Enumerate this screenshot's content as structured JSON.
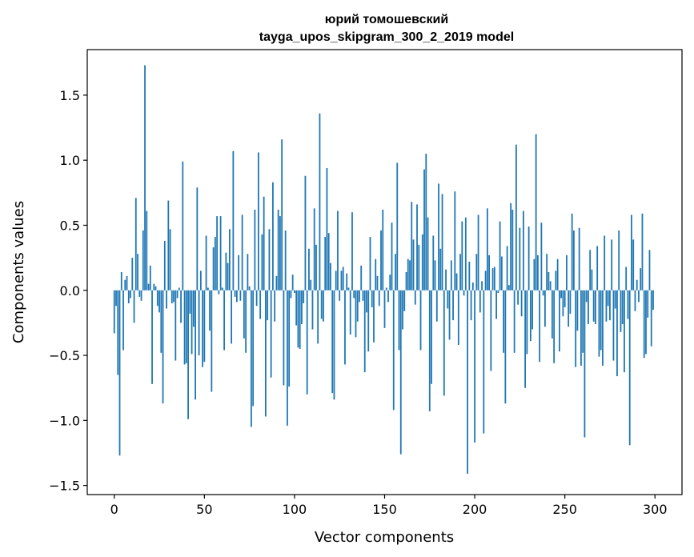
{
  "chart_data": {
    "type": "bar",
    "title_line1": "юрий томошевский",
    "title_line2": "tayga_upos_skipgram_300_2_2019 model",
    "xlabel": "Vector components",
    "ylabel": "Components values",
    "xlim": [
      -15,
      315
    ],
    "ylim": [
      -1.57,
      1.85
    ],
    "xticks": [
      0,
      50,
      100,
      150,
      200,
      250,
      300
    ],
    "xtick_labels": [
      "0",
      "50",
      "100",
      "150",
      "200",
      "250",
      "300"
    ],
    "yticks": [
      -1.5,
      -1.0,
      -0.5,
      0.0,
      0.5,
      1.0,
      1.5
    ],
    "ytick_labels": [
      "−1.5",
      "−1.0",
      "−0.5",
      "0.0",
      "0.5",
      "1.0",
      "1.5"
    ],
    "bar_color": "#1f77b4",
    "grid": false,
    "values": [
      -0.33,
      -0.12,
      -0.65,
      -1.27,
      0.14,
      -0.46,
      0.08,
      0.11,
      -0.1,
      -0.06,
      0.25,
      -0.25,
      0.71,
      0.28,
      -0.05,
      -0.08,
      0.46,
      1.73,
      0.61,
      0.05,
      0.19,
      -0.72,
      0.05,
      0.03,
      -0.12,
      -0.17,
      -0.48,
      -0.87,
      0.38,
      -0.14,
      0.69,
      0.47,
      -0.1,
      -0.09,
      -0.54,
      -0.06,
      0.02,
      -0.25,
      0.99,
      -0.57,
      -0.56,
      -0.99,
      -0.18,
      -0.49,
      -0.28,
      -0.84,
      0.79,
      -0.5,
      0.15,
      -0.59,
      -0.55,
      0.42,
      0.02,
      -0.31,
      -0.78,
      0.33,
      0.41,
      0.57,
      -0.03,
      0.57,
      0.02,
      -0.46,
      0.29,
      0.21,
      0.47,
      -0.41,
      1.07,
      -0.05,
      -0.09,
      0.27,
      -0.08,
      0.58,
      -0.37,
      -0.48,
      0.28,
      0.03,
      -1.05,
      -0.89,
      0.62,
      -0.12,
      1.06,
      -0.22,
      0.43,
      0.72,
      -0.97,
      -0.23,
      0.47,
      -0.67,
      0.83,
      -0.24,
      0.11,
      0.62,
      0.57,
      1.16,
      -0.73,
      0.46,
      -1.04,
      -0.74,
      -0.06,
      0.12,
      -0.02,
      -0.27,
      -0.44,
      -0.45,
      -0.26,
      -0.1,
      0.88,
      -0.8,
      0.32,
      0.08,
      -0.3,
      0.63,
      0.35,
      -0.41,
      1.36,
      -0.22,
      -0.24,
      0.41,
      0.94,
      0.44,
      0.21,
      -0.79,
      -0.84,
      0.15,
      0.61,
      -0.08,
      0.15,
      0.18,
      -0.57,
      0.13,
      0.02,
      -0.34,
      0.6,
      -0.06,
      -0.36,
      -0.24,
      -0.09,
      0.19,
      -0.08,
      -0.63,
      -0.17,
      -0.47,
      0.41,
      -0.13,
      -0.4,
      0.24,
      0.11,
      -0.12,
      0.46,
      0.62,
      -0.29,
      0.02,
      -0.09,
      0.12,
      0.52,
      -0.92,
      0.28,
      0.98,
      -0.46,
      -1.26,
      -0.3,
      -0.16,
      0.14,
      0.24,
      0.23,
      0.68,
      0.39,
      -0.11,
      0.66,
      0.35,
      -0.46,
      0.43,
      0.93,
      1.05,
      0.56,
      -0.93,
      -0.72,
      0.42,
      0.23,
      -0.24,
      0.82,
      0.32,
      0.74,
      -0.81,
      0.16,
      -0.14,
      -0.38,
      0.23,
      -0.23,
      0.76,
      0.13,
      -0.42,
      0.28,
      0.53,
      -0.04,
      0.56,
      -1.41,
      0.22,
      -0.23,
      0.06,
      -1.17,
      0.28,
      0.58,
      -0.17,
      0.07,
      -1.1,
      0.15,
      0.63,
      0.27,
      -0.62,
      0.17,
      0.18,
      -0.22,
      -0.02,
      0.53,
      0.26,
      -0.48,
      -0.87,
      0.34,
      0.04,
      0.67,
      0.62,
      -0.48,
      1.12,
      -0.11,
      0.48,
      -0.2,
      0.61,
      -0.75,
      -0.49,
      0.49,
      -0.39,
      -0.3,
      0.24,
      1.2,
      0.27,
      -0.55,
      0.52,
      -0.04,
      -0.28,
      0.28,
      0.14,
      0.07,
      -0.37,
      -0.56,
      0.15,
      0.24,
      -0.47,
      -0.06,
      -0.2,
      -0.13,
      0.27,
      -0.28,
      -0.18,
      0.59,
      0.46,
      -0.59,
      -0.31,
      0.48,
      -0.58,
      -0.48,
      -1.13,
      -0.09,
      -0.26,
      0.31,
      0.16,
      -0.24,
      -0.26,
      0.34,
      -0.51,
      -0.46,
      -0.58,
      0.42,
      -0.24,
      -0.12,
      -0.23,
      0.39,
      -0.54,
      -0.14,
      -0.66,
      0.46,
      -0.32,
      -0.26,
      -0.63,
      0.18,
      -0.22,
      -1.19,
      0.58,
      0.39,
      -0.16,
      0.08,
      -0.09,
      0.17,
      0.59,
      -0.52,
      -0.49,
      -0.21,
      0.31,
      -0.43,
      -0.15
    ]
  }
}
